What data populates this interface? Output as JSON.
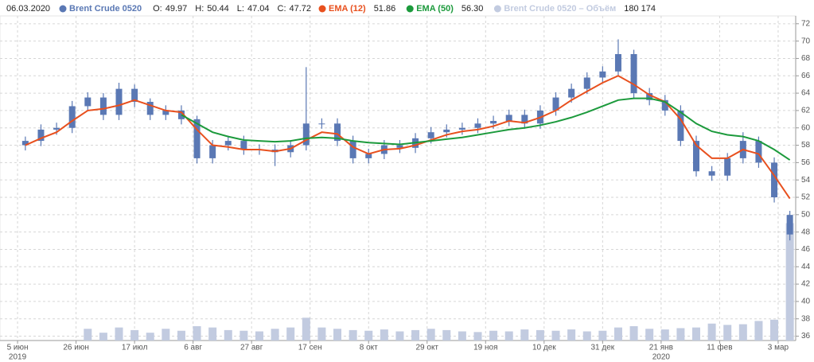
{
  "chart_data": {
    "type": "candlestick",
    "header": {
      "date": "06.03.2020",
      "ohlc": [
        {
          "label": "O:",
          "value": 49.97
        },
        {
          "label": "H:",
          "value": 50.44
        },
        {
          "label": "L:",
          "value": 47.04
        },
        {
          "label": "C:",
          "value": 47.72
        }
      ],
      "last_values": [
        51.86,
        {
          "value": 56.3,
          "label": "56.30"
        },
        {
          "value": 180174,
          "label": "180 174"
        }
      ]
    },
    "x": [
      2,
      6,
      10,
      14,
      18,
      22,
      26,
      30,
      34,
      38,
      42,
      46,
      50,
      54,
      58,
      62,
      66,
      70,
      74,
      78,
      82,
      86,
      90,
      94,
      98,
      102,
      106,
      110,
      114,
      118,
      122,
      126,
      130,
      134,
      138,
      142,
      146,
      150,
      154,
      158,
      162,
      166,
      170,
      174,
      178,
      182,
      186,
      190,
      194,
      198
    ],
    "series": [
      {
        "name": "Brent Crude 0520",
        "color": "#5a78b4",
        "open": [
          58,
          58.5,
          59.8,
          60,
          62.5,
          63.5,
          61.5,
          64.5,
          63,
          61.5,
          62,
          61,
          56.5,
          58,
          58.5,
          57.5,
          57.5,
          57.2,
          58,
          60.5,
          60.5,
          58.5,
          56.5,
          57,
          58,
          57.7,
          58.8,
          59.5,
          59.8,
          60,
          60.5,
          60.8,
          61.5,
          60.5,
          62,
          63.5,
          64.5,
          65.8,
          66.5,
          68.5,
          64,
          63.2,
          62,
          58.5,
          55,
          54.5,
          56.5,
          58.5,
          56,
          49.97
        ],
        "high": [
          59,
          60.4,
          60.6,
          63.1,
          64.1,
          64,
          65.2,
          65,
          63.4,
          62.6,
          62.6,
          61.4,
          58.6,
          59.1,
          59.1,
          58.1,
          58.1,
          58.6,
          67,
          61.1,
          61.1,
          59.1,
          57.6,
          58.6,
          58.6,
          59.4,
          60.1,
          60.4,
          60.6,
          61.1,
          61.4,
          62.1,
          62.1,
          62.6,
          64.1,
          65.1,
          66.4,
          67.1,
          70.2,
          69,
          64.6,
          63.8,
          62.6,
          59.1,
          55.6,
          57.1,
          59.5,
          59,
          56.6,
          50.44
        ],
        "low": [
          57.4,
          57.9,
          59.2,
          59.4,
          61.9,
          60.9,
          60.9,
          62.4,
          60.9,
          60.9,
          60.4,
          55.9,
          55.9,
          57.4,
          56.9,
          56.9,
          55.6,
          56.6,
          57.4,
          59.9,
          57.9,
          55.9,
          55.9,
          56.4,
          57.1,
          57.1,
          58.2,
          58.9,
          59.2,
          59.4,
          59.9,
          60.2,
          59.9,
          59.9,
          61.4,
          62.9,
          63.9,
          65.2,
          65.9,
          63.4,
          62.6,
          61.4,
          57.9,
          54.4,
          53.9,
          53.9,
          55.9,
          55.4,
          51.4,
          47.04
        ],
        "close": [
          58.5,
          59.8,
          60,
          62.5,
          63.5,
          61.5,
          64.5,
          63,
          61.5,
          62,
          61,
          56.5,
          58,
          58.5,
          57.5,
          57.5,
          57.2,
          58,
          60.5,
          60.5,
          58.5,
          56.5,
          57,
          58,
          57.7,
          58.8,
          59.5,
          59.8,
          60,
          60.5,
          60.8,
          61.5,
          60.5,
          62,
          63.5,
          64.5,
          65.8,
          66.5,
          68.5,
          64,
          63.2,
          62,
          58.5,
          55,
          54.5,
          56.5,
          58.5,
          56,
          52,
          47.72
        ]
      },
      {
        "name": "EMA (12)",
        "color": "#e8501e",
        "values": [
          58,
          58.8,
          59.5,
          60.8,
          62,
          62.2,
          62.6,
          63.2,
          62.6,
          62,
          61.8,
          59.8,
          58,
          57.8,
          57.5,
          57.5,
          57.3,
          57.6,
          58.6,
          59.5,
          59.3,
          57.8,
          57,
          57.5,
          57.6,
          58,
          58.6,
          59.2,
          59.6,
          59.8,
          60.2,
          60.8,
          60.6,
          61.2,
          62,
          63.2,
          64.2,
          65.2,
          66,
          65,
          63.8,
          63,
          61,
          58,
          56.5,
          56.5,
          57.5,
          57,
          54.5,
          51.86
        ]
      },
      {
        "name": "EMA (50)",
        "color": "#1c9a3c",
        "values": [
          null,
          null,
          null,
          null,
          null,
          null,
          null,
          null,
          null,
          null,
          61.5,
          60.5,
          59.5,
          59,
          58.6,
          58.5,
          58.4,
          58.5,
          58.8,
          58.9,
          58.8,
          58.5,
          58.3,
          58.2,
          58.1,
          58.3,
          58.5,
          58.7,
          58.9,
          59.2,
          59.5,
          59.8,
          60,
          60.3,
          60.7,
          61.2,
          61.8,
          62.5,
          63.2,
          63.4,
          63.4,
          63,
          61.8,
          60.5,
          59.6,
          59.2,
          59,
          58.5,
          57.5,
          56.3
        ]
      },
      {
        "name": "Brent Crude 0520 – Объём",
        "color": "#c2cbe0",
        "axis": "volume",
        "values": [
          0,
          0,
          0,
          0,
          18000,
          12000,
          20000,
          16000,
          12000,
          18000,
          15000,
          22000,
          20000,
          16000,
          15000,
          14000,
          18000,
          20000,
          35000,
          20000,
          18000,
          16000,
          15000,
          17000,
          14000,
          16000,
          18000,
          16000,
          14000,
          13000,
          15000,
          14000,
          17000,
          16000,
          15000,
          17000,
          14000,
          15000,
          20000,
          22000,
          18000,
          17000,
          19000,
          20000,
          26000,
          24000,
          25000,
          30000,
          32000,
          180174
        ]
      }
    ],
    "xlim": [
      -4.5,
      199.5
    ],
    "xticks": [
      {
        "value": 0,
        "label": "5 июн"
      },
      {
        "value": 15,
        "label": "26 июн"
      },
      {
        "value": 30,
        "label": "17 июл"
      },
      {
        "value": 45,
        "label": "6 авг"
      },
      {
        "value": 60,
        "label": "27 авг"
      },
      {
        "value": 75,
        "label": "17 сен"
      },
      {
        "value": 90,
        "label": "8 окт"
      },
      {
        "value": 105,
        "label": "29 окт"
      },
      {
        "value": 120,
        "label": "19 ноя"
      },
      {
        "value": 135,
        "label": "10 дек"
      },
      {
        "value": 150,
        "label": "31 дек"
      },
      {
        "value": 165,
        "label": "21 янв"
      },
      {
        "value": 180,
        "label": "11 фев"
      },
      {
        "value": 195,
        "label": "3 мар"
      }
    ],
    "x_years": [
      {
        "value": 0,
        "label": "2019"
      },
      {
        "value": 165,
        "label": "2020"
      }
    ],
    "ylim": [
      35.5,
      72.9
    ],
    "yticks": [
      36,
      38,
      40,
      42,
      44,
      46,
      48,
      50,
      52,
      54,
      56,
      58,
      60,
      62,
      64,
      66,
      68,
      70,
      72
    ],
    "volume_lim": [
      0,
      215000
    ],
    "grid": true
  }
}
